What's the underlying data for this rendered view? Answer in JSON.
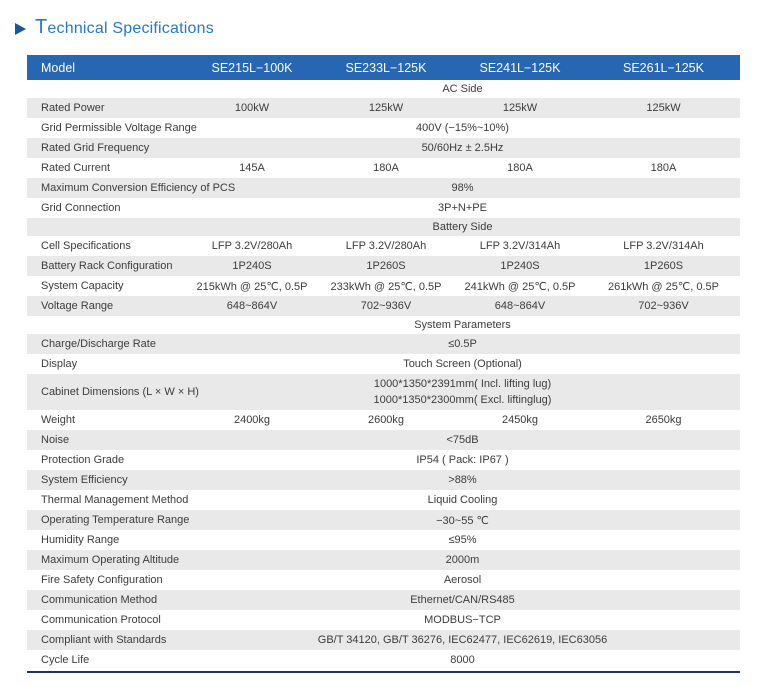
{
  "title": "Technical Specifications",
  "colors": {
    "header_bg": "#2766b2",
    "stripe_bg": "#e9e9e9",
    "title_blue": "#2779cb",
    "arrow_blue": "#1557a0",
    "text": "#3c3c3c",
    "bottom_rule": "#1f3355"
  },
  "table": {
    "header": {
      "label": "Model",
      "models": [
        "SE215L−100K",
        "SE233L−125K",
        "SE241L−125K",
        "SE261L−125K"
      ]
    },
    "rows": [
      {
        "type": "section",
        "label": "AC Side"
      },
      {
        "type": "cols",
        "label": "Rated Power",
        "values": [
          "100kW",
          "125kW",
          "125kW",
          "125kW"
        ]
      },
      {
        "type": "merged",
        "label": "Grid Permissible Voltage Range",
        "value": "400V (−15%~10%)"
      },
      {
        "type": "merged",
        "label": "Rated Grid Frequency",
        "value": "50/60Hz ± 2.5Hz"
      },
      {
        "type": "cols",
        "label": "Rated Current",
        "values": [
          "145A",
          "180A",
          "180A",
          "180A"
        ]
      },
      {
        "type": "merged",
        "label": "Maximum Conversion Efficiency of PCS",
        "value": "98%"
      },
      {
        "type": "merged",
        "label": "Grid Connection",
        "value": "3P+N+PE"
      },
      {
        "type": "section",
        "label": "Battery Side"
      },
      {
        "type": "cols",
        "label": "Cell Specifications",
        "values": [
          "LFP 3.2V/280Ah",
          "LFP 3.2V/280Ah",
          "LFP 3.2V/314Ah",
          "LFP 3.2V/314Ah"
        ]
      },
      {
        "type": "cols",
        "label": "Battery Rack Configuration",
        "values": [
          "1P240S",
          "1P260S",
          "1P240S",
          "1P260S"
        ]
      },
      {
        "type": "cols",
        "label": "System Capacity",
        "values": [
          "215kWh @ 25℃, 0.5P",
          "233kWh @ 25℃, 0.5P",
          "241kWh @ 25℃, 0.5P",
          "261kWh @ 25℃, 0.5P"
        ]
      },
      {
        "type": "cols",
        "label": "Voltage Range",
        "values": [
          "648~864V",
          "702~936V",
          "648~864V",
          "702~936V"
        ]
      },
      {
        "type": "section",
        "label": "System Parameters"
      },
      {
        "type": "merged",
        "label": "Charge/Discharge Rate",
        "value": "≤0.5P"
      },
      {
        "type": "merged",
        "label": "Display",
        "value": "Touch Screen (Optional)"
      },
      {
        "type": "merged",
        "label": "Cabinet Dimensions (L × W × H)",
        "lines": [
          "1000*1350*2391mm( Incl. lifting lug)",
          "1000*1350*2300mm( Excl. liftinglug)"
        ]
      },
      {
        "type": "cols",
        "label": "Weight",
        "values": [
          "2400kg",
          "2600kg",
          "2450kg",
          "2650kg"
        ]
      },
      {
        "type": "merged",
        "label": "Noise",
        "value": "<75dB"
      },
      {
        "type": "merged",
        "label": "Protection Grade",
        "value": "IP54 ( Pack: IP67 )"
      },
      {
        "type": "merged",
        "label": "System Efficiency",
        "value": ">88%"
      },
      {
        "type": "merged",
        "label": "Thermal Management Method",
        "value": "Liquid Cooling"
      },
      {
        "type": "merged",
        "label": "Operating Temperature Range",
        "value": "−30~55 ℃"
      },
      {
        "type": "merged",
        "label": "Humidity Range",
        "value": "≤95%"
      },
      {
        "type": "merged",
        "label": "Maximum Operating Altitude",
        "value": "2000m"
      },
      {
        "type": "merged",
        "label": "Fire Safety Configuration",
        "value": "Aerosol"
      },
      {
        "type": "merged",
        "label": "Communication Method",
        "value": "Ethernet/CAN/RS485"
      },
      {
        "type": "merged",
        "label": "Communication Protocol",
        "value": "MODBUS−TCP"
      },
      {
        "type": "merged",
        "label": "Compliant with Standards",
        "value": "GB/T 34120, GB/T 36276, IEC62477, IEC62619, IEC63056"
      },
      {
        "type": "merged",
        "label": "Cycle Life",
        "value": "8000"
      }
    ]
  }
}
